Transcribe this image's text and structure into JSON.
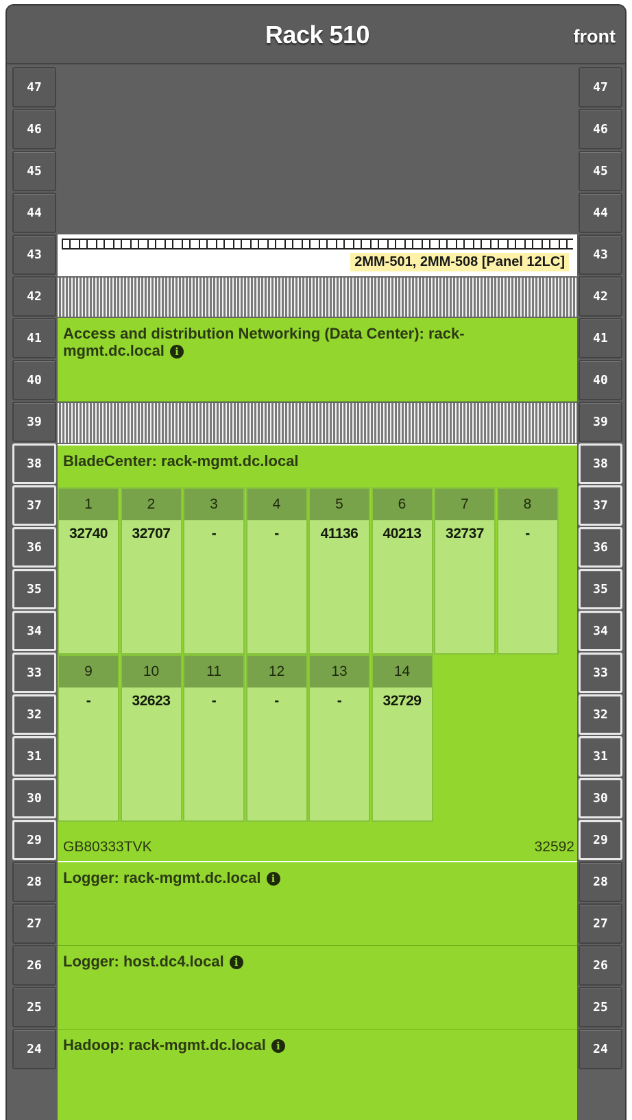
{
  "rack": {
    "title": "Rack 510",
    "side": "front"
  },
  "units": [
    "47",
    "46",
    "45",
    "44",
    "43",
    "42",
    "41",
    "40",
    "39",
    "38",
    "37",
    "36",
    "35",
    "34",
    "33",
    "32",
    "31",
    "30",
    "29",
    "28",
    "27",
    "26",
    "25",
    "24"
  ],
  "patch_panel": {
    "label": "2MM-501, 2MM-508 [Panel 12LC]"
  },
  "devices": {
    "networking": "Access and distribution Networking (Data Center): rack-mgmt.dc.local",
    "bladecenter": {
      "title": "BladeCenter: rack-mgmt.dc.local",
      "serial": "GB80333TVK",
      "asset": "32592",
      "bays_row1": [
        {
          "num": "1",
          "value": "32740"
        },
        {
          "num": "2",
          "value": "32707"
        },
        {
          "num": "3",
          "value": "-"
        },
        {
          "num": "4",
          "value": "-"
        },
        {
          "num": "5",
          "value": "41136"
        },
        {
          "num": "6",
          "value": "40213"
        },
        {
          "num": "7",
          "value": "32737"
        },
        {
          "num": "8",
          "value": "-"
        }
      ],
      "bays_row2": [
        {
          "num": "9",
          "value": "-"
        },
        {
          "num": "10",
          "value": "32623"
        },
        {
          "num": "11",
          "value": "-"
        },
        {
          "num": "12",
          "value": "-"
        },
        {
          "num": "13",
          "value": "-"
        },
        {
          "num": "14",
          "value": "32729"
        }
      ]
    },
    "logger1": "Logger: rack-mgmt.dc.local",
    "logger2": "Logger: host.dc4.local",
    "hadoop": "Hadoop: rack-mgmt.dc.local"
  },
  "icons": {
    "info": "info-icon",
    "info_glyph": "i"
  },
  "colors": {
    "device_green": "#93d72e",
    "rack_gray": "#606060",
    "panel_label": "#fdf2a8"
  }
}
